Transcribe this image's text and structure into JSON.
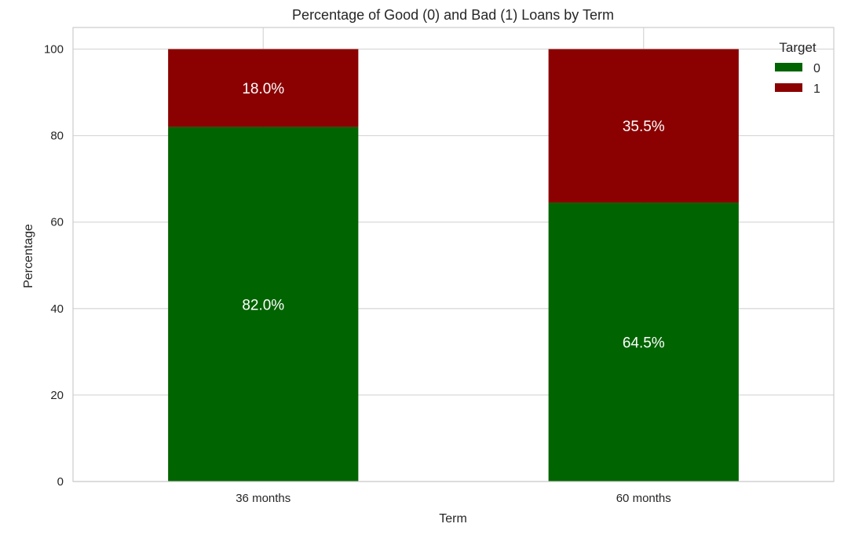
{
  "chart_data": {
    "type": "bar",
    "stacked": true,
    "title": "Percentage of Good (0) and Bad (1) Loans by Term",
    "xlabel": "Term",
    "ylabel": "Percentage",
    "categories": [
      "36 months",
      "60 months"
    ],
    "series": [
      {
        "name": "0",
        "values": [
          82.0,
          64.5
        ],
        "color": "#006400",
        "labels": [
          "82.0%",
          "64.5%"
        ]
      },
      {
        "name": "1",
        "values": [
          18.0,
          35.5
        ],
        "color": "#8b0000",
        "labels": [
          "18.0%",
          "35.5%"
        ]
      }
    ],
    "ylim": [
      0,
      105
    ],
    "yticks": [
      0,
      20,
      40,
      60,
      80,
      100
    ],
    "grid": true,
    "legend": {
      "title": "Target",
      "position": "top-right"
    }
  }
}
